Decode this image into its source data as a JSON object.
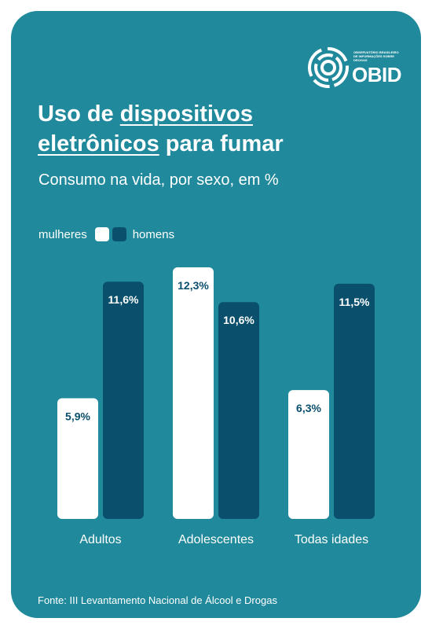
{
  "header": {
    "title_part1": "Uso de ",
    "title_underlined1": "dispositivos",
    "title_underlined2": "eletrônicos",
    "title_part2": " para fumar",
    "subtitle": "Consumo na vida, por sexo, em %"
  },
  "logo": {
    "name": "OBID",
    "small_text": "OBSERVATÓRIO BRASILEIRO DE INFORMAÇÕES SOBRE DROGAS"
  },
  "legend": {
    "women": "mulheres",
    "men": "homens"
  },
  "colors": {
    "background": "#20899b",
    "women": "#ffffff",
    "men": "#0a4f6c",
    "women_label": "#0a4f6c",
    "men_label": "#ffffff"
  },
  "chart_data": {
    "type": "bar",
    "categories": [
      "Adultos",
      "Adolescentes",
      "Todas idades"
    ],
    "series": [
      {
        "name": "mulheres",
        "values": [
          5.9,
          12.3,
          6.3
        ],
        "labels": [
          "5,9%",
          "12,3%",
          "6,3%"
        ]
      },
      {
        "name": "homens",
        "values": [
          11.6,
          10.6,
          11.5
        ],
        "labels": [
          "11,6%",
          "10,6%",
          "11,5%"
        ]
      }
    ],
    "title": "Uso de dispositivos eletrônicos para fumar",
    "subtitle": "Consumo na vida, por sexo, em %",
    "ylim": [
      0,
      12.3
    ]
  },
  "footer": {
    "source": "Fonte: III Levantamento Nacional de Álcool e Drogas"
  }
}
